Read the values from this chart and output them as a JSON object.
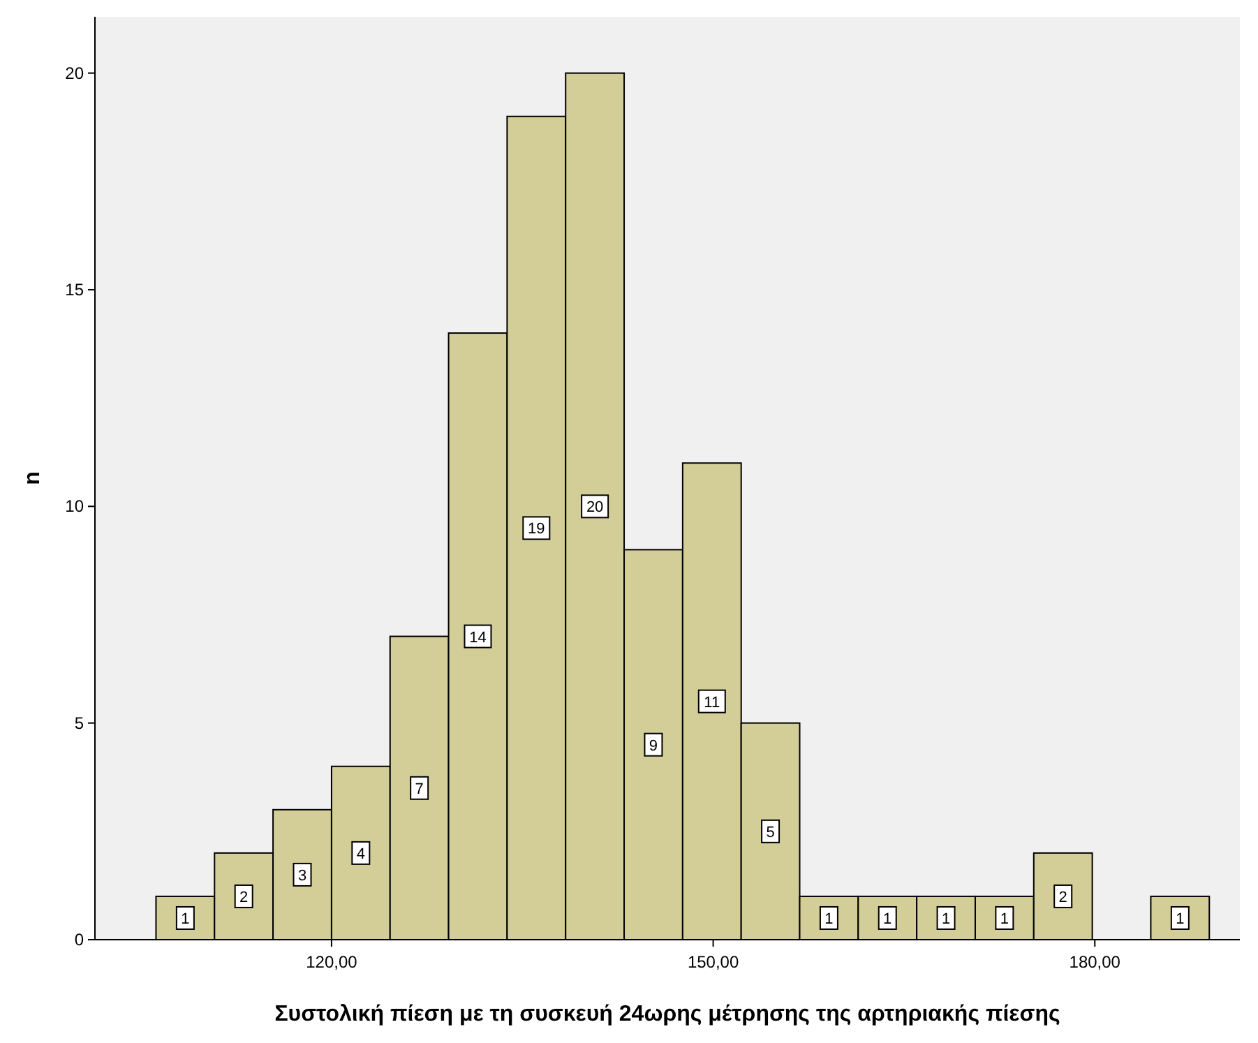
{
  "chart_data": {
    "type": "histogram",
    "xlabel": "Συστολική πίεση με τη συσκευή 24ωρης μέτρησης της αρτηριακής πίεσης",
    "ylabel": "n",
    "bins": [
      106.2,
      110.8,
      115.4,
      120.0,
      124.6,
      129.2,
      133.8,
      138.4,
      143.0,
      147.6,
      152.2,
      156.8,
      161.4,
      166.0,
      170.6,
      175.2,
      179.8,
      184.4,
      189.0
    ],
    "values": [
      1,
      2,
      3,
      4,
      7,
      14,
      19,
      20,
      9,
      11,
      5,
      1,
      1,
      1,
      1,
      2,
      0,
      1
    ],
    "color": "#d3ce97",
    "xlim": [
      101.4,
      191.4
    ],
    "xticks": [
      {
        "value": 120,
        "label": "120,00"
      },
      {
        "value": 150,
        "label": "150,00"
      },
      {
        "value": 180,
        "label": "180,00"
      }
    ],
    "ylim": [
      0,
      21.3
    ],
    "yticks": [
      0,
      5,
      10,
      15,
      20
    ],
    "value_labels": [
      "1",
      "2",
      "3",
      "4",
      "7",
      "14",
      "19",
      "20",
      "9",
      "11",
      "5",
      "1",
      "1",
      "1",
      "1",
      "2",
      null,
      "1"
    ],
    "grid": false
  }
}
